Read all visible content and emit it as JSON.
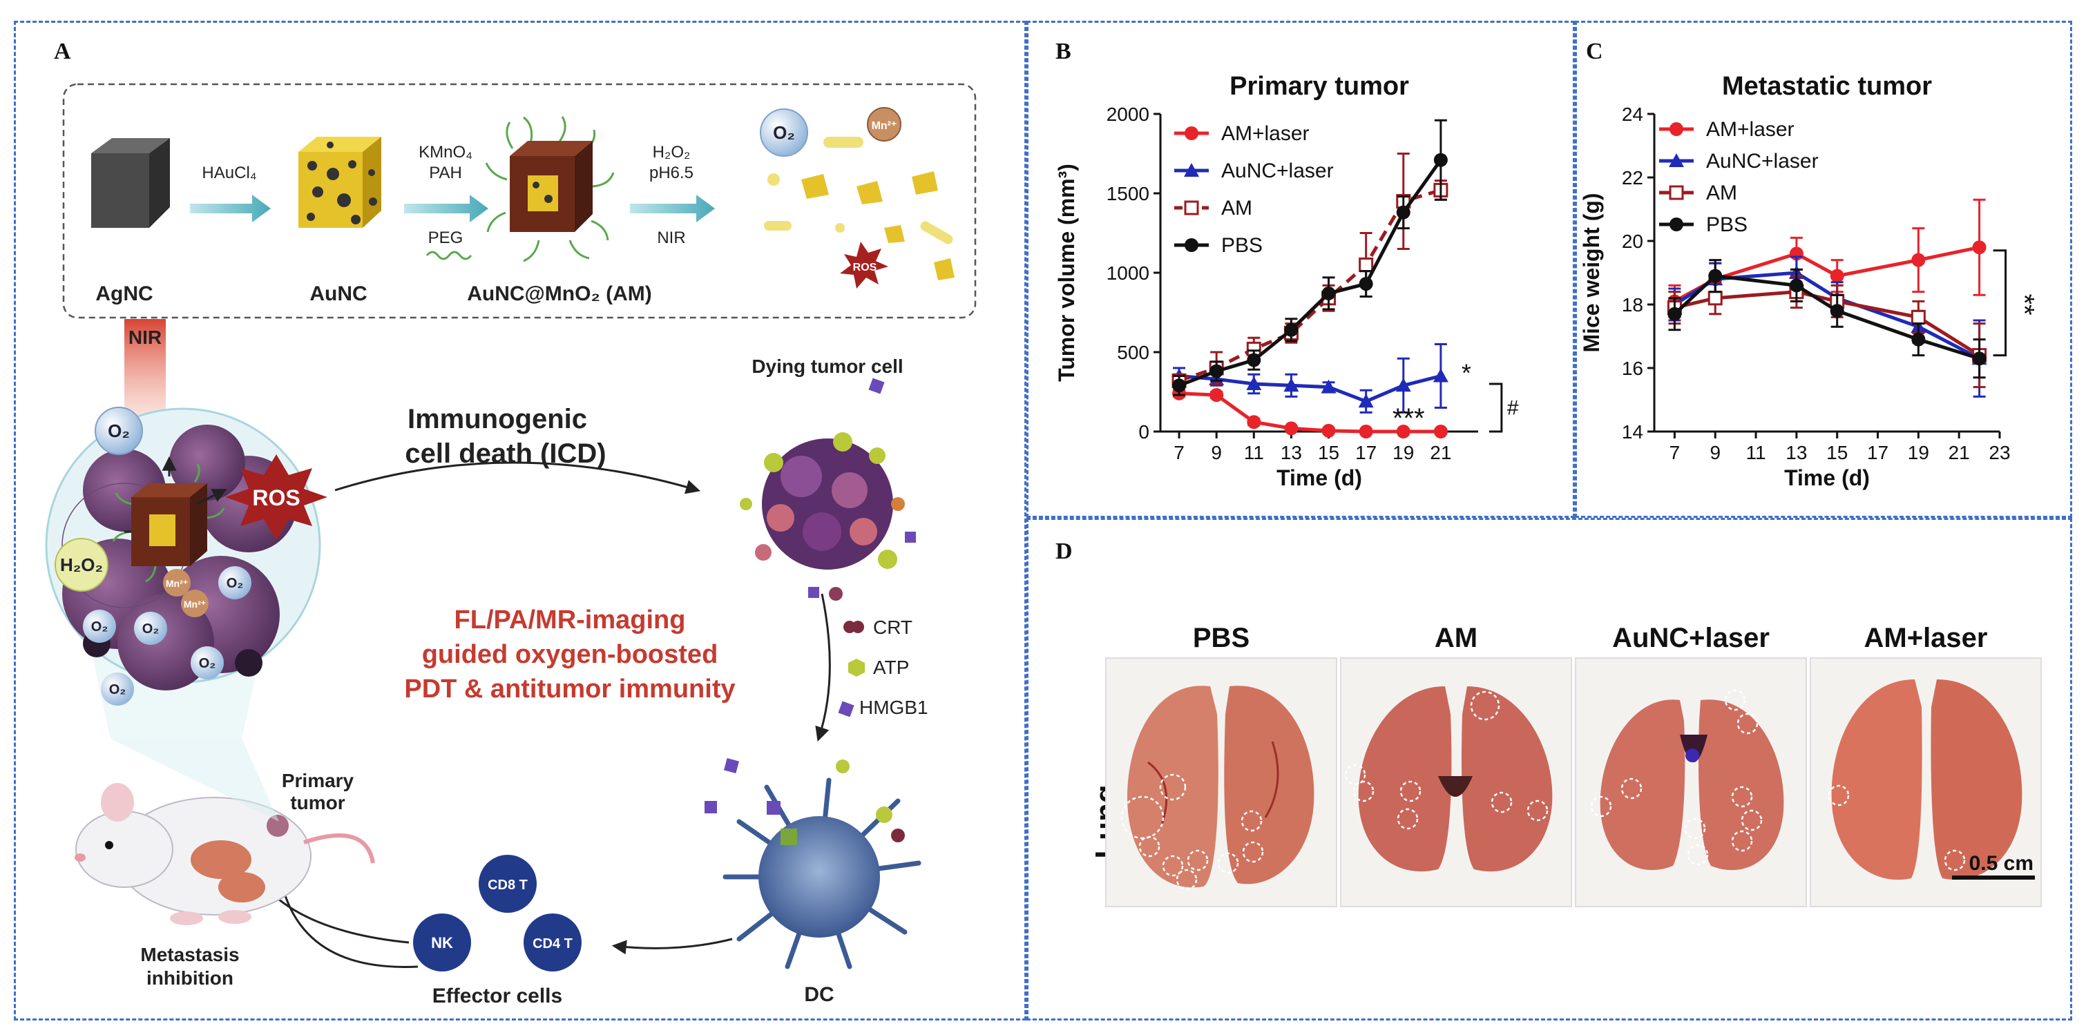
{
  "panels": {
    "a": "A",
    "b": "B",
    "c": "C",
    "d": "D"
  },
  "panel_a": {
    "synthesis": {
      "agnc": "AgNC",
      "aunc": "AuNC",
      "am": "AuNC@MnO₂ (AM)",
      "step1": "HAuCl₄",
      "step2a": "KMnO₄",
      "step2b": "PAH",
      "step2c": "PEG",
      "step3a": "H₂O₂",
      "step3b": "pH6.5",
      "step3c": "NIR",
      "o2": "O₂",
      "mn": "Mn²⁺",
      "ros": "ROS"
    },
    "mechanism": {
      "nir": "NIR",
      "o2": "O₂",
      "ros": "ROS",
      "h2o2": "H₂O₂",
      "mn": "Mn²⁺",
      "icd_line1": "Immunogenic",
      "icd_line2": "cell death (ICD)",
      "dying": "Dying tumor cell",
      "crt": "CRT",
      "atp": "ATP",
      "hmgb1": "HMGB1",
      "highlight_line1": "FL/PA/MR-imaging",
      "highlight_line2": "guided oxygen-boosted",
      "highlight_line3": "PDT & antitumor immunity",
      "primary_line1": "Primary",
      "primary_line2": "tumor",
      "metastasis_line1": "Metastasis",
      "metastasis_line2": "inhibition",
      "cd8": "CD8 T",
      "cd4": "CD4 T",
      "nk": "NK",
      "effector": "Effector cells",
      "dc": "DC"
    },
    "colors": {
      "ros": "#a5201f",
      "highlight": "#c63a2f",
      "arrow": "#5bb8c4"
    }
  },
  "panel_d": {
    "row_label": "Lung",
    "groups": [
      "PBS",
      "AM",
      "AuNC+laser",
      "AM+laser"
    ],
    "scale_bar": "0.5 cm"
  },
  "chart_data": [
    {
      "type": "line",
      "title": "Primary tumor",
      "xlabel": "Time (d)",
      "ylabel": "Tumor volume (mm³)",
      "x": [
        7,
        9,
        11,
        13,
        15,
        17,
        19,
        21
      ],
      "xticks": [
        "7",
        "9",
        "11",
        "13",
        "15",
        "17",
        "19",
        "21"
      ],
      "yticks": [
        "0",
        "500",
        "1000",
        "1500",
        "2000"
      ],
      "xlim": [
        6,
        23
      ],
      "ylim": [
        0,
        2000
      ],
      "series": [
        {
          "name": "AM+laser",
          "color": "#e8232a",
          "marker": "circle",
          "dashed": false,
          "values": [
            240,
            230,
            60,
            20,
            5,
            0,
            0,
            0
          ],
          "err": [
            20,
            20,
            20,
            10,
            5,
            5,
            5,
            5
          ]
        },
        {
          "name": "AuNC+laser",
          "color": "#1f2bb8",
          "marker": "triangle",
          "dashed": false,
          "values": [
            350,
            330,
            300,
            290,
            280,
            190,
            290,
            350
          ],
          "err": [
            50,
            40,
            60,
            70,
            30,
            70,
            170,
            200
          ]
        },
        {
          "name": "AM",
          "color": "#9b1b1e",
          "marker": "open-square",
          "dashed": true,
          "values": [
            320,
            400,
            520,
            620,
            840,
            1050,
            1450,
            1520
          ],
          "err": [
            40,
            100,
            70,
            60,
            80,
            200,
            300,
            60
          ]
        },
        {
          "name": "PBS",
          "color": "#111111",
          "marker": "circle",
          "dashed": false,
          "values": [
            290,
            380,
            450,
            640,
            870,
            930,
            1380,
            1710
          ],
          "err": [
            60,
            60,
            60,
            70,
            100,
            80,
            100,
            250
          ]
        }
      ],
      "annotations": [
        "*",
        "***",
        "#"
      ],
      "legend": "top-left"
    },
    {
      "type": "line",
      "title": "Metastatic tumor",
      "xlabel": "Time (d)",
      "ylabel": "Mice weight (g)",
      "x": [
        7,
        9,
        13,
        15,
        19,
        22
      ],
      "xticks": [
        "7",
        "9",
        "11",
        "13",
        "15",
        "17",
        "19",
        "21",
        "23"
      ],
      "yticks": [
        "14",
        "16",
        "18",
        "20",
        "22",
        "24"
      ],
      "xlim": [
        6,
        23
      ],
      "ylim": [
        14,
        24
      ],
      "series": [
        {
          "name": "AM+laser",
          "color": "#e8232a",
          "marker": "circle",
          "dashed": false,
          "values": [
            18.1,
            18.8,
            19.6,
            18.9,
            19.4,
            19.8
          ],
          "err": [
            0.5,
            0.5,
            0.5,
            0.5,
            1.0,
            1.5
          ]
        },
        {
          "name": "AuNC+laser",
          "color": "#1f2bb8",
          "marker": "triangle",
          "dashed": false,
          "values": [
            18.0,
            18.8,
            19.0,
            18.2,
            17.3,
            16.3
          ],
          "err": [
            0.5,
            0.5,
            0.5,
            0.5,
            0.5,
            1.2
          ]
        },
        {
          "name": "AM",
          "color": "#9b1b1e",
          "marker": "open-square",
          "dashed": false,
          "values": [
            17.9,
            18.2,
            18.4,
            18.1,
            17.6,
            16.4
          ],
          "err": [
            0.5,
            0.5,
            0.5,
            0.5,
            0.5,
            1.0
          ]
        },
        {
          "name": "PBS",
          "color": "#111111",
          "marker": "circle",
          "dashed": false,
          "values": [
            17.7,
            18.9,
            18.6,
            17.8,
            16.9,
            16.3
          ],
          "err": [
            0.5,
            0.5,
            0.5,
            0.5,
            0.5,
            0.6
          ]
        }
      ],
      "annotations": [
        "**"
      ],
      "legend": "top-left"
    }
  ]
}
